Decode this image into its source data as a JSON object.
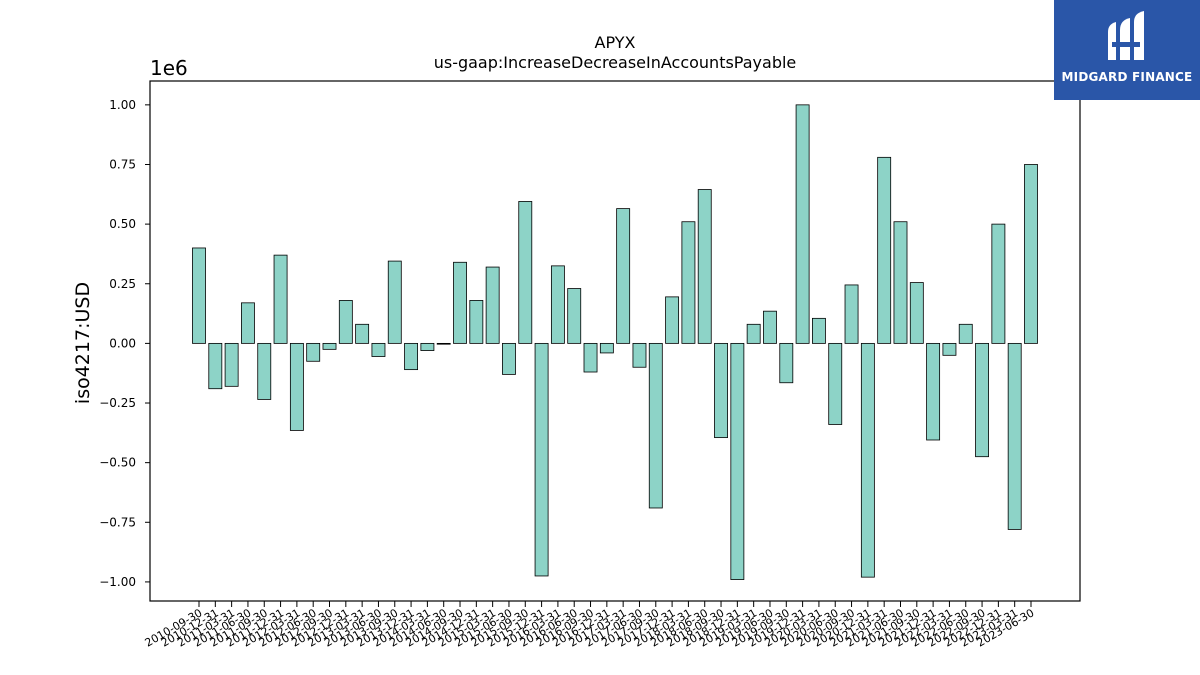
{
  "chart_data": {
    "type": "bar",
    "title": "APYX",
    "subtitle": "us-gaap:IncreaseDecreaseInAccountsPayable",
    "xlabel": "",
    "ylabel": "iso4217:USD",
    "y_offset_text": "1e6",
    "ylim": [
      -1.08,
      1.1
    ],
    "yticks": [
      1.0,
      0.75,
      0.5,
      0.25,
      0.0,
      -0.25,
      -0.5,
      -0.75,
      -1.0
    ],
    "ytick_labels": [
      "1.00",
      "0.75",
      "0.50",
      "0.25",
      "0.00",
      "−0.25",
      "−0.50",
      "−0.75",
      "−1.00"
    ],
    "grid": false,
    "bar_color": "#8dd3c7",
    "edge_color": "#000000",
    "categories": [
      "2010-09-30",
      "2010-12-31",
      "2011-03-31",
      "2011-06-30",
      "2011-09-30",
      "2011-12-31",
      "2012-03-31",
      "2012-06-30",
      "2012-09-30",
      "2012-12-31",
      "2013-03-31",
      "2013-06-30",
      "2013-09-30",
      "2013-12-31",
      "2014-03-31",
      "2014-06-30",
      "2014-09-30",
      "2014-12-31",
      "2015-03-31",
      "2015-06-30",
      "2015-09-30",
      "2015-12-31",
      "2016-03-31",
      "2016-06-30",
      "2016-09-30",
      "2016-12-31",
      "2017-03-31",
      "2017-06-30",
      "2017-09-30",
      "2017-12-31",
      "2018-03-31",
      "2018-06-30",
      "2018-09-30",
      "2018-12-31",
      "2019-03-31",
      "2019-06-30",
      "2019-09-30",
      "2019-12-31",
      "2020-03-31",
      "2020-06-30",
      "2020-09-30",
      "2020-12-31",
      "2021-03-31",
      "2021-06-30",
      "2021-09-30",
      "2021-12-31",
      "2022-03-31",
      "2022-06-30",
      "2022-09-30",
      "2022-12-31",
      "2023-03-31",
      "2023-06-30"
    ],
    "values": [
      0.4,
      -0.19,
      -0.18,
      0.17,
      -0.235,
      0.37,
      -0.365,
      -0.075,
      -0.025,
      0.18,
      0.08,
      -0.055,
      0.345,
      -0.11,
      -0.03,
      0.0,
      0.34,
      0.18,
      0.32,
      -0.13,
      0.595,
      -0.975,
      0.325,
      0.23,
      -0.12,
      -0.04,
      0.565,
      -0.1,
      -0.69,
      0.195,
      0.51,
      0.645,
      -0.395,
      -0.99,
      0.08,
      0.135,
      -0.165,
      1.0,
      0.105,
      -0.34,
      0.245,
      -0.98,
      0.78,
      0.51,
      0.255,
      -0.405,
      -0.05,
      0.08,
      -0.475,
      0.5,
      -0.78,
      0.75
    ],
    "value_scale": 1000000
  },
  "logo": {
    "text": "MIDGARD FINANCE",
    "color": "#2a56a8"
  }
}
